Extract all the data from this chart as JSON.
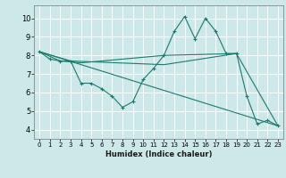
{
  "xlabel": "Humidex (Indice chaleur)",
  "bg_color": "#cce8e8",
  "grid_color": "#ffffff",
  "line_color": "#1a7a6e",
  "xlim": [
    -0.5,
    23.5
  ],
  "ylim": [
    3.5,
    10.7
  ],
  "xticks": [
    0,
    1,
    2,
    3,
    4,
    5,
    6,
    7,
    8,
    9,
    10,
    11,
    12,
    13,
    14,
    15,
    16,
    17,
    18,
    19,
    20,
    21,
    22,
    23
  ],
  "yticks": [
    4,
    5,
    6,
    7,
    8,
    9,
    10
  ],
  "series_main": {
    "x": [
      0,
      1,
      2,
      3,
      4,
      5,
      6,
      7,
      8,
      9,
      10,
      11,
      12,
      13,
      14,
      15,
      16,
      17,
      18,
      19,
      20,
      21,
      22,
      23
    ],
    "y": [
      8.2,
      7.8,
      7.7,
      7.7,
      6.5,
      6.5,
      6.2,
      5.8,
      5.2,
      5.5,
      6.7,
      7.3,
      8.0,
      9.3,
      10.1,
      8.9,
      10.0,
      9.3,
      8.1,
      8.1,
      5.8,
      4.3,
      4.5,
      4.2
    ]
  },
  "series_extra": [
    {
      "x": [
        0,
        2,
        4,
        12,
        19
      ],
      "y": [
        8.2,
        7.7,
        7.6,
        8.0,
        8.1
      ]
    },
    {
      "x": [
        0,
        3,
        12,
        19,
        23
      ],
      "y": [
        8.2,
        7.7,
        7.5,
        8.1,
        4.2
      ]
    },
    {
      "x": [
        0,
        23
      ],
      "y": [
        8.2,
        4.2
      ]
    }
  ]
}
